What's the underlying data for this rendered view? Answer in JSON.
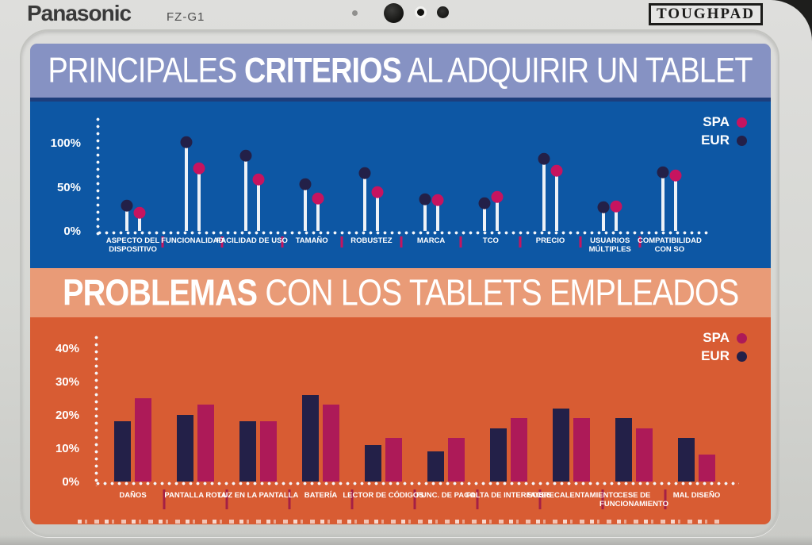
{
  "device": {
    "brand": "Panasonic",
    "model": "FZ-G1",
    "badge": "TOUGHPAD"
  },
  "colors": {
    "criteria_title_bg": "#8692c3",
    "criteria_chart_bg": "#0d57a4",
    "criteria_divider": "#1d3e7c",
    "problems_title_bg": "#e99b77",
    "problems_chart_bg": "#d85c33",
    "spa_series_criteria": "#c6145f",
    "spa_series_problems": "#ad1a58",
    "eur_series": "#232048",
    "category_separator_criteria": "#c6145f",
    "category_separator_problems": "#a52045",
    "chart_text": "#ffffff"
  },
  "chart_data": [
    {
      "type": "lollipop",
      "title": "PRINCIPALES CRITERIOS AL ADQUIRIR UN TABLET",
      "title_parts": [
        "PRINCIPALES ",
        "CRITERIOS",
        " AL ADQUIRIR UN TABLET"
      ],
      "legend_position": "top-right",
      "categories": [
        "ASPECTO DEL DISPOSITIVO",
        "FUNCIONALIDAD",
        "FACILIDAD DE USO",
        "TAMAÑO",
        "ROBUSTEZ",
        "MARCA",
        "TCO",
        "PRECIO",
        "USUARIOS MÚLTIPLES",
        "COMPATIBILIDAD CON SO"
      ],
      "series": [
        {
          "name": "SPA",
          "color": "#c6145f",
          "values": [
            20,
            70,
            58,
            36,
            43,
            34,
            38,
            68,
            27,
            62
          ]
        },
        {
          "name": "EUR",
          "color": "#232048",
          "values": [
            28,
            100,
            85,
            52,
            65,
            35,
            31,
            81,
            26,
            66
          ]
        }
      ],
      "xlabel": "",
      "ylabel": "",
      "unit": "percent",
      "ylim": [
        0,
        110
      ],
      "yticks": [
        {
          "label": "100%",
          "value": 100
        },
        {
          "label": "50%",
          "value": 50
        },
        {
          "label": "0%",
          "value": 0
        }
      ],
      "grid": "dotted-axes-only"
    },
    {
      "type": "bar",
      "title": "PROBLEMAS CON LOS TABLETS EMPLEADOS",
      "title_parts": [
        "PROBLEMAS",
        " CON LOS TABLETS EMPLEADOS"
      ],
      "legend_position": "top-right",
      "categories": [
        "DAÑOS",
        "PANTALLA ROTA",
        "LUZ EN LA PANTALLA",
        "BATERÍA",
        "LECTOR DE CÓDIGOS",
        "FUNC. DE PAGO",
        "FALTA DE INTERFACES",
        "SOBRECALENTAMIENTO",
        "CESE DE FUNCIONAMIENTO",
        "MAL DISEÑO"
      ],
      "series": [
        {
          "name": "SPA",
          "color": "#ad1a58",
          "values": [
            25,
            23,
            18,
            23,
            13,
            13,
            19,
            19,
            16,
            8
          ]
        },
        {
          "name": "EUR",
          "color": "#232048",
          "values": [
            18,
            20,
            18,
            26,
            11,
            9,
            16,
            22,
            19,
            13
          ]
        }
      ],
      "xlabel": "",
      "ylabel": "",
      "unit": "percent",
      "ylim": [
        0,
        42
      ],
      "yticks": [
        {
          "label": "40%",
          "value": 40
        },
        {
          "label": "30%",
          "value": 30
        },
        {
          "label": "20%",
          "value": 20
        },
        {
          "label": "10%",
          "value": 10
        },
        {
          "label": "0%",
          "value": 0
        }
      ],
      "grid": "dotted-axes-only"
    }
  ]
}
